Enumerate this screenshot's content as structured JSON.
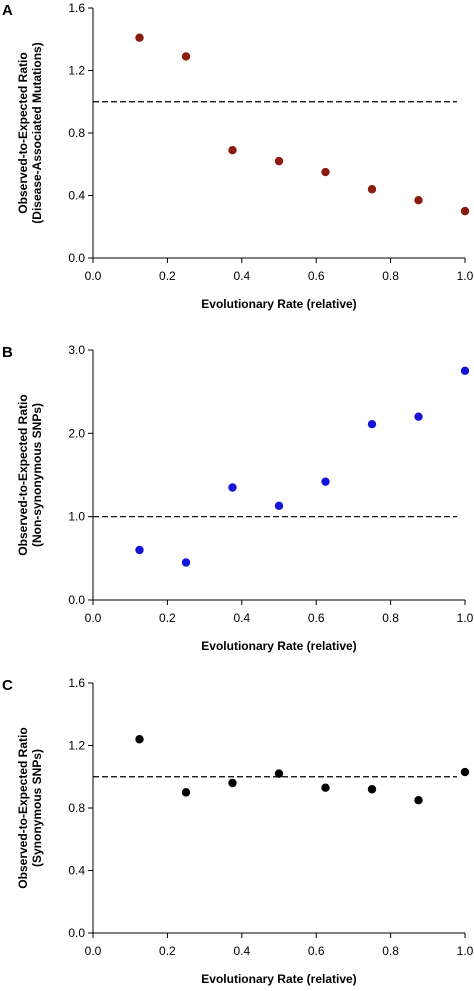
{
  "chart_data": [
    {
      "type": "scatter",
      "panel_label": "A",
      "xlabel": "Evolutionary Rate (relative)",
      "ylabel_lines": [
        "Observed-to-Expected Ratio",
        "(Disease-Associated Mutations)"
      ],
      "xlim": [
        0,
        1
      ],
      "ylim": [
        0,
        1.6
      ],
      "x_ticks": [
        "0.0",
        "0.2",
        "0.4",
        "0.6",
        "0.8",
        "1.0"
      ],
      "x_tick_values": [
        0,
        0.2,
        0.4,
        0.6,
        0.8,
        1.0
      ],
      "y_ticks": [
        "0.0",
        "0.4",
        "0.8",
        "1.2",
        "1.6"
      ],
      "y_tick_values": [
        0,
        0.4,
        0.8,
        1.2,
        1.6
      ],
      "reference_line": 1.0,
      "marker_color": "#8b1a10",
      "points": [
        {
          "x": 0.125,
          "y": 1.41
        },
        {
          "x": 0.25,
          "y": 1.29
        },
        {
          "x": 0.375,
          "y": 0.69
        },
        {
          "x": 0.5,
          "y": 0.62
        },
        {
          "x": 0.625,
          "y": 0.55
        },
        {
          "x": 0.75,
          "y": 0.44
        },
        {
          "x": 0.875,
          "y": 0.37
        },
        {
          "x": 1.0,
          "y": 0.3
        }
      ],
      "grid": false
    },
    {
      "type": "scatter",
      "panel_label": "B",
      "xlabel": "Evolutionary Rate (relative)",
      "ylabel_lines": [
        "Observed-to-Expected Ratio",
        "(Non-synonymous SNPs)"
      ],
      "xlim": [
        0,
        1
      ],
      "ylim": [
        0,
        3
      ],
      "x_ticks": [
        "0.0",
        "0.2",
        "0.4",
        "0.6",
        "0.8",
        "1.0"
      ],
      "x_tick_values": [
        0,
        0.2,
        0.4,
        0.6,
        0.8,
        1.0
      ],
      "y_ticks": [
        "0.0",
        "1.0",
        "2.0",
        "3.0"
      ],
      "y_tick_values": [
        0,
        1,
        2,
        3
      ],
      "reference_line": 1.0,
      "marker_color": "#1414d8",
      "points": [
        {
          "x": 0.125,
          "y": 0.6
        },
        {
          "x": 0.25,
          "y": 0.45
        },
        {
          "x": 0.375,
          "y": 1.35
        },
        {
          "x": 0.5,
          "y": 1.13
        },
        {
          "x": 0.625,
          "y": 1.42
        },
        {
          "x": 0.75,
          "y": 2.11
        },
        {
          "x": 0.875,
          "y": 2.2
        },
        {
          "x": 1.0,
          "y": 2.75
        }
      ],
      "grid": false
    },
    {
      "type": "scatter",
      "panel_label": "C",
      "xlabel": "Evolutionary Rate (relative)",
      "ylabel_lines": [
        "Observed-to-Expected Ratio",
        "(Synonymous SNPs)"
      ],
      "xlim": [
        0,
        1
      ],
      "ylim": [
        0,
        1.6
      ],
      "x_ticks": [
        "0.0",
        "0.2",
        "0.4",
        "0.6",
        "0.8",
        "1.0"
      ],
      "x_tick_values": [
        0,
        0.2,
        0.4,
        0.6,
        0.8,
        1.0
      ],
      "y_ticks": [
        "0.0",
        "0.4",
        "0.8",
        "1.2",
        "1.6"
      ],
      "y_tick_values": [
        0,
        0.4,
        0.8,
        1.2,
        1.6
      ],
      "reference_line": 1.0,
      "marker_color": "#000000",
      "points": [
        {
          "x": 0.125,
          "y": 1.24
        },
        {
          "x": 0.25,
          "y": 0.9
        },
        {
          "x": 0.375,
          "y": 0.96
        },
        {
          "x": 0.5,
          "y": 1.02
        },
        {
          "x": 0.625,
          "y": 0.93
        },
        {
          "x": 0.75,
          "y": 0.92
        },
        {
          "x": 0.875,
          "y": 0.85
        },
        {
          "x": 1.0,
          "y": 1.03
        }
      ],
      "grid": false
    }
  ]
}
